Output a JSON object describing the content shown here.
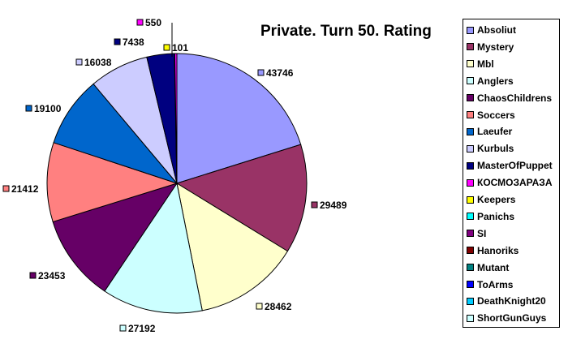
{
  "chart_data": {
    "type": "pie",
    "title": "Private. Turn 50. Rating",
    "slices": [
      {
        "label": "Absoliut",
        "value": 43746,
        "color": "#9999ff"
      },
      {
        "label": "Mystery",
        "value": 29489,
        "color": "#993366"
      },
      {
        "label": "Mbl",
        "value": 0,
        "color": "#ffffcc"
      },
      {
        "label": "Anglers",
        "value": 28462,
        "color": "#ffffcc"
      },
      {
        "label": "ChaosChildrens",
        "value": 27192,
        "color": "#ccffff"
      },
      {
        "label": "Soccers",
        "value": 23453,
        "color": "#660066"
      },
      {
        "label": "Laeufer",
        "value": 0,
        "color": "#ff8080"
      },
      {
        "label": "Kurbuls",
        "value": 21412,
        "color": "#ff8080"
      },
      {
        "label": "MasterOfPuppet",
        "value": 0,
        "color": "#0066cc"
      },
      {
        "label": "КОСМОЗАРАЗА",
        "value": 19100,
        "color": "#0066cc"
      },
      {
        "label": "Keepers",
        "value": 16038,
        "color": "#ccccff"
      },
      {
        "label": "Panichs",
        "value": 7438,
        "color": "#000080"
      },
      {
        "label": "SI",
        "value": 101,
        "color": "#ffff00"
      },
      {
        "label": "Hanoriks",
        "value": 550,
        "color": "#ff00ff"
      }
    ],
    "data_labels": [
      "43746",
      "29489",
      "28462",
      "27192",
      "23453",
      "21412",
      "19100",
      "16038",
      "7438",
      "550",
      "101"
    ],
    "legend": {
      "placement": "right",
      "entries": [
        {
          "label": "Absoliut",
          "color": "#9999ff"
        },
        {
          "label": "Mystery",
          "color": "#993366"
        },
        {
          "label": "Mbl",
          "color": "#ffffcc"
        },
        {
          "label": "Anglers",
          "color": "#ccffff"
        },
        {
          "label": "ChaosChildrens",
          "color": "#660066"
        },
        {
          "label": "Soccers",
          "color": "#ff8080"
        },
        {
          "label": "Laeufer",
          "color": "#0066cc"
        },
        {
          "label": "Kurbuls",
          "color": "#ccccff"
        },
        {
          "label": "MasterOfPuppet",
          "color": "#000080"
        },
        {
          "label": "КОСМОЗАРАЗА",
          "color": "#ff00ff"
        },
        {
          "label": "Keepers",
          "color": "#ffff00"
        },
        {
          "label": "Panichs",
          "color": "#00ffff"
        },
        {
          "label": "SI",
          "color": "#800080"
        },
        {
          "label": "Hanoriks",
          "color": "#800000"
        },
        {
          "label": "Mutant",
          "color": "#008080"
        },
        {
          "label": "ToArms",
          "color": "#0000ff"
        },
        {
          "label": "DeathKnight20",
          "color": "#00ccff"
        },
        {
          "label": "ShortGunGuys",
          "color": "#ccffff"
        }
      ]
    }
  }
}
